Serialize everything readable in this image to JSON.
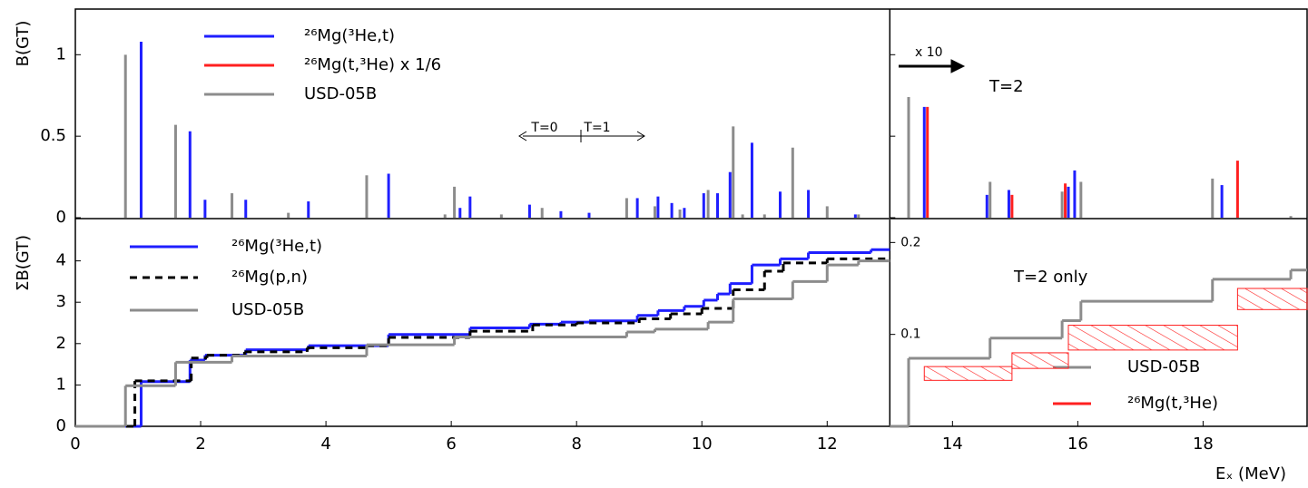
{
  "chart_data": [
    {
      "type": "stick",
      "ylabel": "B(GT)",
      "xlim": [
        0,
        19.66
      ],
      "ylim": [
        0,
        1.28
      ],
      "yticks": [
        0,
        0.5,
        1
      ],
      "panel_split": 13,
      "annotations": [
        "T=0",
        "T=1",
        "x 10",
        "T=2"
      ],
      "series": [
        {
          "name": "²⁶Mg(³He,t)",
          "color": "#1f1fff",
          "x": [
            1.05,
            1.83,
            2.07,
            2.72,
            3.72,
            5.0,
            6.14,
            6.3,
            7.25,
            7.75,
            8.2,
            8.97,
            9.3,
            9.52,
            9.72,
            10.03,
            10.25,
            10.45,
            10.8,
            11.25,
            11.7,
            12.45,
            13.55,
            14.55,
            14.9,
            15.85,
            15.95,
            18.3
          ],
          "values": [
            1.08,
            0.53,
            0.11,
            0.11,
            0.1,
            0.27,
            0.06,
            0.13,
            0.08,
            0.04,
            0.03,
            0.12,
            0.13,
            0.09,
            0.06,
            0.15,
            0.15,
            0.28,
            0.46,
            0.16,
            0.17,
            0.02,
            0.68,
            0.14,
            0.17,
            0.19,
            0.29,
            0.2
          ]
        },
        {
          "name": "²⁶Mg(t,³He) x 1/6",
          "color": "#ff2020",
          "x": [
            13.6,
            14.95,
            15.8,
            18.55
          ],
          "values": [
            0.68,
            0.14,
            0.21,
            0.35
          ]
        },
        {
          "name": "USD-05B",
          "color": "#8c8c8c",
          "x": [
            0.8,
            1.6,
            2.5,
            3.4,
            4.65,
            5.9,
            6.05,
            6.8,
            7.45,
            8.8,
            9.25,
            9.65,
            10.1,
            10.5,
            10.65,
            11.0,
            11.45,
            12.0,
            12.5,
            13.3,
            14.6,
            15.75,
            16.05,
            18.15,
            19.4
          ],
          "values": [
            1.0,
            0.57,
            0.15,
            0.03,
            0.26,
            0.02,
            0.19,
            0.02,
            0.06,
            0.12,
            0.07,
            0.05,
            0.17,
            0.56,
            0.02,
            0.02,
            0.43,
            0.07,
            0.02,
            0.74,
            0.22,
            0.16,
            0.22,
            0.24,
            0.01
          ]
        }
      ]
    },
    {
      "type": "step",
      "ylabel": "ΣB(GT)",
      "xlabel": "Eₓ (MeV)",
      "xlim": [
        0,
        19.66
      ],
      "ylim": [
        0,
        5
      ],
      "y2lim": [
        0,
        0.225
      ],
      "xticks": [
        0,
        2,
        4,
        6,
        8,
        10,
        12,
        14,
        16,
        18
      ],
      "yticks": [
        0,
        1,
        2,
        3,
        4
      ],
      "y2ticks": [
        0.1,
        0.2
      ],
      "panel_split": 13,
      "annotations": [
        "T=2 only"
      ],
      "series": [
        {
          "name": "²⁶Mg(³He,t)",
          "color": "#1f1fff",
          "dash": false,
          "x": [
            0,
            1.05,
            1.83,
            2.07,
            2.72,
            3.72,
            5.0,
            6.3,
            7.25,
            7.75,
            8.2,
            8.97,
            9.3,
            9.72,
            10.03,
            10.25,
            10.45,
            10.8,
            11.25,
            11.7,
            12.7
          ],
          "values": [
            0,
            1.08,
            1.6,
            1.72,
            1.85,
            1.95,
            2.22,
            2.38,
            2.47,
            2.52,
            2.55,
            2.68,
            2.8,
            2.9,
            3.05,
            3.2,
            3.45,
            3.9,
            4.05,
            4.2,
            4.27
          ]
        },
        {
          "name": "²⁶Mg(p,n)",
          "color": "#000000",
          "dash": true,
          "x": [
            0,
            0.95,
            1.85,
            2.1,
            2.7,
            3.7,
            4.65,
            5.0,
            6.3,
            7.3,
            8.0,
            9.0,
            9.5,
            10.0,
            10.5,
            11.0,
            11.3,
            12.0
          ],
          "values": [
            0,
            1.1,
            1.65,
            1.72,
            1.8,
            1.9,
            1.95,
            2.15,
            2.3,
            2.45,
            2.5,
            2.6,
            2.72,
            2.85,
            3.3,
            3.75,
            3.95,
            4.05
          ]
        },
        {
          "name": "USD-05B",
          "color": "#8c8c8c",
          "dash": false,
          "x": [
            0,
            0.8,
            1.6,
            2.5,
            4.65,
            6.05,
            8.8,
            9.25,
            10.1,
            10.5,
            11.45,
            12.0,
            12.5
          ],
          "values": [
            0,
            0.98,
            1.55,
            1.7,
            1.97,
            2.16,
            2.28,
            2.35,
            2.52,
            3.08,
            3.5,
            3.9,
            4.0
          ]
        },
        {
          "name": "USD-05B",
          "color": "#8c8c8c",
          "dash": false,
          "axis": "y2",
          "x": [
            13.0,
            13.3,
            14.6,
            15.75,
            16.05,
            18.15,
            19.4
          ],
          "values": [
            0,
            0.074,
            0.096,
            0.115,
            0.136,
            0.16,
            0.17
          ]
        },
        {
          "name": "²⁶Mg(t,³He)",
          "color": "#ff2020",
          "axis": "y2",
          "band": true,
          "x": [
            13.55,
            14.95,
            15.85,
            18.55
          ],
          "values": [
            0.05,
            0.063,
            0.083,
            0.127
          ],
          "values_high": [
            0.065,
            0.08,
            0.11,
            0.15
          ]
        }
      ]
    }
  ]
}
